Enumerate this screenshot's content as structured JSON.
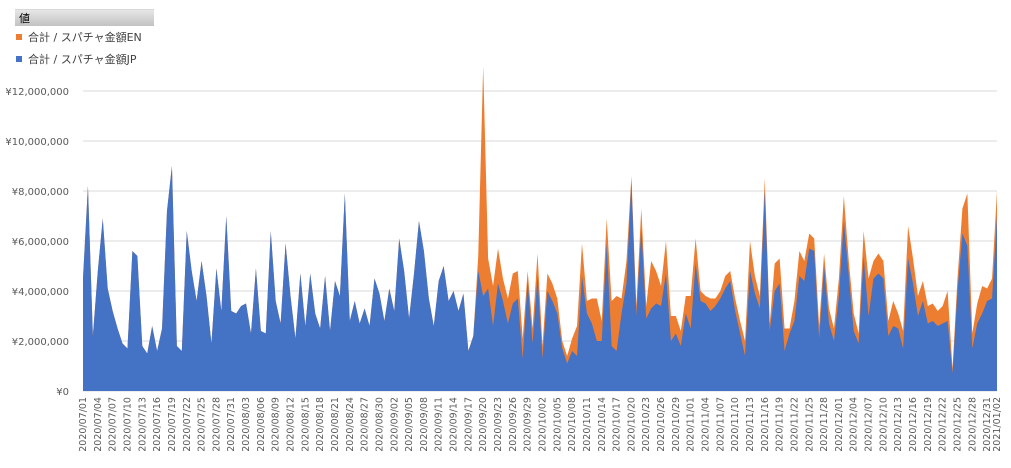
{
  "field_button": {
    "label": "値"
  },
  "colors": {
    "jp": "#4472c4",
    "en": "#ed7d31",
    "grid": "#d9d9d9",
    "axis_text": "#595959"
  },
  "legend": [
    {
      "label": "合計 / スパチャ金額EN",
      "color": "#ed7d31",
      "series": "en"
    },
    {
      "label": "合計 / スパチャ金額JP",
      "color": "#4472c4",
      "series": "jp"
    }
  ],
  "chart_data": {
    "type": "area",
    "stacked": true,
    "title": "",
    "xlabel": "",
    "ylabel": "",
    "ylim": [
      0,
      12000000
    ],
    "y_ticks": [
      0,
      2000000,
      4000000,
      6000000,
      8000000,
      10000000,
      12000000
    ],
    "y_tick_labels": [
      "¥0",
      "¥2,000,000",
      "¥4,000,000",
      "¥6,000,000",
      "¥8,000,000",
      "¥10,000,000",
      "¥12,000,000"
    ],
    "grid": true,
    "legend_position": "top-left",
    "x_start_date": "2020/07/01",
    "x_end_date": "2020/12/31",
    "x_tick_every_days": 3,
    "series": [
      {
        "key": "jp",
        "name": "合計 / スパチャ金額JP",
        "values": [
          4500000,
          8200000,
          2200000,
          4800000,
          6900000,
          4100000,
          3200000,
          2500000,
          1900000,
          1700000,
          5600000,
          5400000,
          1800000,
          1500000,
          2600000,
          1600000,
          2500000,
          7200000,
          9000000,
          1800000,
          1600000,
          6400000,
          4800000,
          3600000,
          5200000,
          3800000,
          1900000,
          4900000,
          3200000,
          7000000,
          3200000,
          3100000,
          3400000,
          3500000,
          2300000,
          4900000,
          2400000,
          2300000,
          6400000,
          3600000,
          2700000,
          5900000,
          3800000,
          2100000,
          4700000,
          2600000,
          4700000,
          3100000,
          2500000,
          4600000,
          2400000,
          4400000,
          3800000,
          7900000,
          2800000,
          3600000,
          2700000,
          3300000,
          2600000,
          4500000,
          3900000,
          2800000,
          4100000,
          3200000,
          6100000,
          4800000,
          2900000,
          4700000,
          6800000,
          5600000,
          3700000,
          2600000,
          4400000,
          5000000,
          3600000,
          4000000,
          3200000,
          3900000,
          1600000,
          2200000,
          4800000,
          3800000,
          4100000,
          2600000,
          4300000,
          3600000,
          2700000,
          3500000,
          3700000,
          1300000,
          4400000,
          1900000,
          4600000,
          1300000,
          4000000,
          3600000,
          3100000,
          1700000,
          1100000,
          1600000,
          1400000,
          4600000,
          3100000,
          2700000,
          2000000,
          2000000,
          5900000,
          1800000,
          1600000,
          3100000,
          4300000,
          8400000,
          3000000,
          6500000,
          2900000,
          3300000,
          3500000,
          3400000,
          4700000,
          2000000,
          2300000,
          1800000,
          3100000,
          2500000,
          5100000,
          3600000,
          3500000,
          3200000,
          3400000,
          3700000,
          4100000,
          4400000,
          3200000,
          2300000,
          1400000,
          4800000,
          3900000,
          3300000,
          8000000,
          2400000,
          4000000,
          4300000,
          1600000,
          2300000,
          2800000,
          4600000,
          4400000,
          5700000,
          5600000,
          2100000,
          5000000,
          2700000,
          2000000,
          3800000,
          6800000,
          4600000,
          2400000,
          1900000,
          5400000,
          3000000,
          4500000,
          4700000,
          4500000,
          2200000,
          2600000,
          2500000,
          1700000,
          5300000,
          4300000,
          3000000,
          3600000,
          2700000,
          2800000,
          2600000,
          2700000,
          2800000,
          700000,
          4000000,
          6300000,
          5800000,
          1700000,
          2700000,
          3100000,
          3600000,
          3700000,
          7000000
        ]
      },
      {
        "key": "en",
        "name": "合計 / スパチャ金額EN",
        "values": [
          0,
          0,
          0,
          0,
          0,
          0,
          0,
          0,
          0,
          0,
          0,
          0,
          0,
          0,
          0,
          0,
          0,
          0,
          0,
          0,
          0,
          0,
          0,
          0,
          0,
          0,
          0,
          0,
          0,
          0,
          0,
          0,
          0,
          0,
          0,
          0,
          0,
          0,
          0,
          0,
          0,
          0,
          0,
          0,
          0,
          0,
          0,
          0,
          0,
          0,
          0,
          0,
          0,
          0,
          0,
          0,
          0,
          0,
          0,
          0,
          0,
          0,
          0,
          0,
          0,
          0,
          0,
          0,
          0,
          0,
          0,
          0,
          0,
          0,
          0,
          0,
          0,
          0,
          0,
          0,
          600000,
          9200000,
          1200000,
          1600000,
          1400000,
          900000,
          1000000,
          1200000,
          1100000,
          800000,
          400000,
          600000,
          900000,
          500000,
          700000,
          700000,
          600000,
          300000,
          300000,
          500000,
          1200000,
          1300000,
          500000,
          1000000,
          1700000,
          800000,
          1000000,
          1800000,
          2200000,
          600000,
          900000,
          200000,
          400000,
          800000,
          500000,
          1900000,
          1300000,
          800000,
          1300000,
          1000000,
          700000,
          600000,
          700000,
          1300000,
          1000000,
          400000,
          300000,
          500000,
          300000,
          300000,
          500000,
          400000,
          500000,
          500000,
          600000,
          1200000,
          700000,
          500000,
          500000,
          300000,
          1100000,
          1000000,
          900000,
          200000,
          800000,
          1000000,
          800000,
          600000,
          500000,
          500000,
          500000,
          600000,
          500000,
          700000,
          1000000,
          600000,
          700000,
          400000,
          1000000,
          1500000,
          700000,
          800000,
          700000,
          600000,
          1000000,
          600000,
          700000,
          1300000,
          1000000,
          800000,
          800000,
          700000,
          700000,
          600000,
          700000,
          1200000,
          200000,
          500000,
          1000000,
          2100000,
          600000,
          800000,
          1100000,
          500000,
          800000,
          1000000
        ]
      }
    ]
  }
}
